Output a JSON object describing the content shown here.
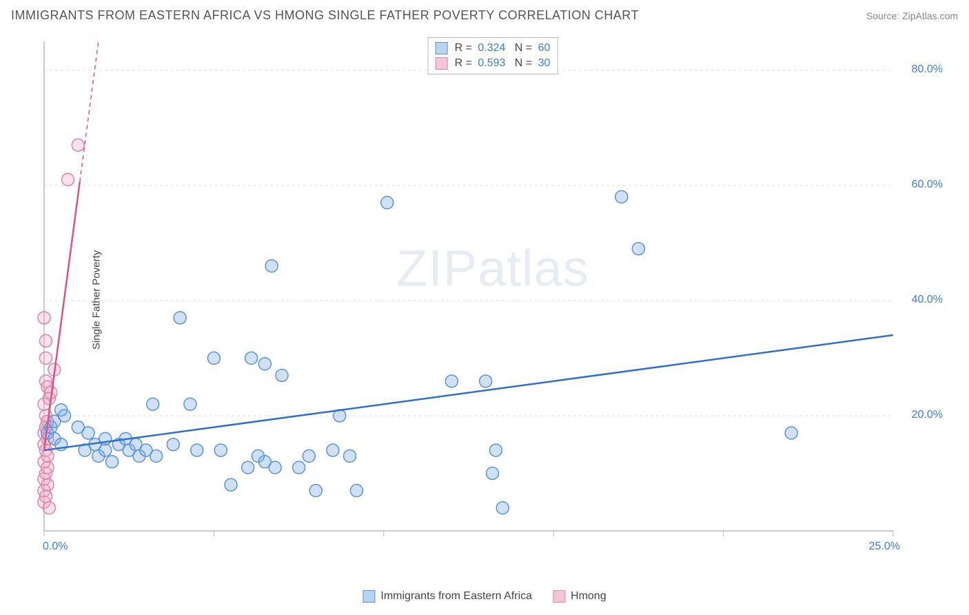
{
  "title": "IMMIGRANTS FROM EASTERN AFRICA VS HMONG SINGLE FATHER POVERTY CORRELATION CHART",
  "source_label": "Source: ZipAtlas.com",
  "ylabel": "Single Father Poverty",
  "watermark": "ZIPatlas",
  "chart": {
    "type": "scatter",
    "background_color": "#ffffff",
    "grid_color": "#dddddd",
    "axis_color": "#999999",
    "tick_color": "#bbbbbb",
    "xlim": [
      0,
      25
    ],
    "ylim": [
      0,
      85
    ],
    "xtick_values": [
      0,
      5,
      10,
      15,
      20,
      25
    ],
    "xtick_labels": [
      "0.0%",
      "",
      "",
      "",
      "",
      "25.0%"
    ],
    "ytick_values": [
      20,
      40,
      60,
      80
    ],
    "ytick_labels": [
      "20.0%",
      "40.0%",
      "60.0%",
      "80.0%"
    ],
    "marker_radius": 9,
    "marker_stroke_width": 1.5,
    "trend_line_width": 2.5,
    "trend_dash_width": 1.5,
    "axis_label_fontsize": 16,
    "axis_label_color": "#3b7dd8",
    "series": [
      {
        "name": "Immigrants from Eastern Africa",
        "r_value": "0.324",
        "n_value": "60",
        "color_fill": "rgba(120,170,230,0.35)",
        "color_stroke": "#5a94d6",
        "swatch_fill": "#b9d3f0",
        "swatch_border": "#5a94d6",
        "trend": {
          "x1": 0,
          "y1": 14,
          "x2": 25,
          "y2": 34,
          "color": "#2e6fd0"
        },
        "points": [
          [
            0.1,
            17
          ],
          [
            0.2,
            18
          ],
          [
            0.3,
            19
          ],
          [
            0.3,
            16
          ],
          [
            0.5,
            21
          ],
          [
            0.5,
            15
          ],
          [
            0.6,
            20
          ],
          [
            1.0,
            18
          ],
          [
            1.2,
            14
          ],
          [
            1.3,
            17
          ],
          [
            1.5,
            15
          ],
          [
            1.6,
            13
          ],
          [
            1.8,
            14
          ],
          [
            1.8,
            16
          ],
          [
            2.0,
            12
          ],
          [
            2.2,
            15
          ],
          [
            2.4,
            16
          ],
          [
            2.5,
            14
          ],
          [
            2.7,
            15
          ],
          [
            2.8,
            13
          ],
          [
            3.0,
            14
          ],
          [
            3.2,
            22
          ],
          [
            3.3,
            13
          ],
          [
            3.8,
            15
          ],
          [
            4.0,
            37
          ],
          [
            4.3,
            22
          ],
          [
            4.5,
            14
          ],
          [
            5.0,
            30
          ],
          [
            5.2,
            14
          ],
          [
            5.5,
            8
          ],
          [
            6.0,
            11
          ],
          [
            6.1,
            30
          ],
          [
            6.3,
            13
          ],
          [
            6.5,
            12
          ],
          [
            6.5,
            29
          ],
          [
            6.7,
            46
          ],
          [
            6.8,
            11
          ],
          [
            7.0,
            27
          ],
          [
            7.5,
            11
          ],
          [
            7.8,
            13
          ],
          [
            8.0,
            7
          ],
          [
            8.5,
            14
          ],
          [
            8.7,
            20
          ],
          [
            9.0,
            13
          ],
          [
            9.2,
            7
          ],
          [
            10.1,
            57
          ],
          [
            12.0,
            26
          ],
          [
            13.0,
            26
          ],
          [
            13.2,
            10
          ],
          [
            13.3,
            14
          ],
          [
            13.5,
            4
          ],
          [
            17.0,
            58
          ],
          [
            17.5,
            49
          ],
          [
            22.0,
            17
          ]
        ]
      },
      {
        "name": "Hmong",
        "r_value": "0.593",
        "n_value": "30",
        "color_fill": "rgba(245,160,190,0.30)",
        "color_stroke": "#e084a8",
        "swatch_fill": "#f5c6d6",
        "swatch_border": "#e084a8",
        "trend": {
          "x1": 0,
          "y1": 14,
          "x2": 1.6,
          "y2": 85,
          "color": "#e05088",
          "solid_to_x": 1.05
        },
        "points": [
          [
            0.0,
            5
          ],
          [
            0.0,
            7
          ],
          [
            0.0,
            9
          ],
          [
            0.0,
            12
          ],
          [
            0.0,
            15
          ],
          [
            0.0,
            17
          ],
          [
            0.0,
            22
          ],
          [
            0.0,
            37
          ],
          [
            0.05,
            6
          ],
          [
            0.05,
            10
          ],
          [
            0.05,
            14
          ],
          [
            0.05,
            18
          ],
          [
            0.05,
            20
          ],
          [
            0.05,
            26
          ],
          [
            0.05,
            30
          ],
          [
            0.05,
            33
          ],
          [
            0.1,
            8
          ],
          [
            0.1,
            11
          ],
          [
            0.1,
            13
          ],
          [
            0.1,
            16
          ],
          [
            0.1,
            19
          ],
          [
            0.1,
            25
          ],
          [
            0.15,
            4
          ],
          [
            0.15,
            23
          ],
          [
            0.2,
            24
          ],
          [
            0.3,
            28
          ],
          [
            0.7,
            61
          ],
          [
            1.0,
            67
          ]
        ]
      }
    ]
  },
  "legend_bottom": [
    {
      "swatch_fill": "#b9d3f0",
      "swatch_border": "#5a94d6",
      "label": "Immigrants from Eastern Africa"
    },
    {
      "swatch_fill": "#f5c6d6",
      "swatch_border": "#e084a8",
      "label": "Hmong"
    }
  ]
}
